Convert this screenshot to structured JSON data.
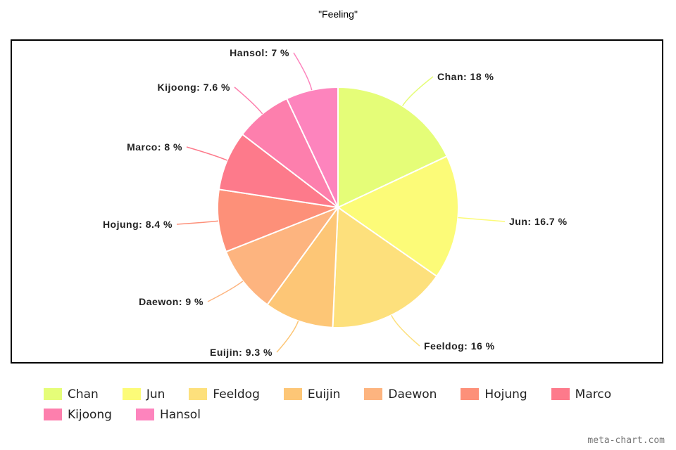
{
  "chart_data": {
    "type": "pie",
    "title": "\"Feeling\"",
    "slices": [
      {
        "label": "Chan",
        "value": 18,
        "text": "Chan: 18 %",
        "color": "#e5fd78"
      },
      {
        "label": "Jun",
        "value": 16.7,
        "text": "Jun: 16.7 %",
        "color": "#fcfb78"
      },
      {
        "label": "Feeldog",
        "value": 16,
        "text": "Feeldog: 16 %",
        "color": "#fde07c"
      },
      {
        "label": "Euijin",
        "value": 9.3,
        "text": "Euijin: 9.3 %",
        "color": "#fdc676"
      },
      {
        "label": "Daewon",
        "value": 9,
        "text": "Daewon: 9 %",
        "color": "#fdb47f"
      },
      {
        "label": "Hojung",
        "value": 8.4,
        "text": "Hojung: 8.4 %",
        "color": "#fd9079"
      },
      {
        "label": "Marco",
        "value": 8,
        "text": "Marco: 8 %",
        "color": "#fd7a8b"
      },
      {
        "label": "Kijoong",
        "value": 7.6,
        "text": "Kijoong: 7.6 %",
        "color": "#fd7fad"
      },
      {
        "label": "Hansol",
        "value": 7,
        "text": "Hansol: 7 %",
        "color": "#fd84bd"
      }
    ],
    "legend_position": "bottom"
  },
  "watermark": "meta-chart.com"
}
